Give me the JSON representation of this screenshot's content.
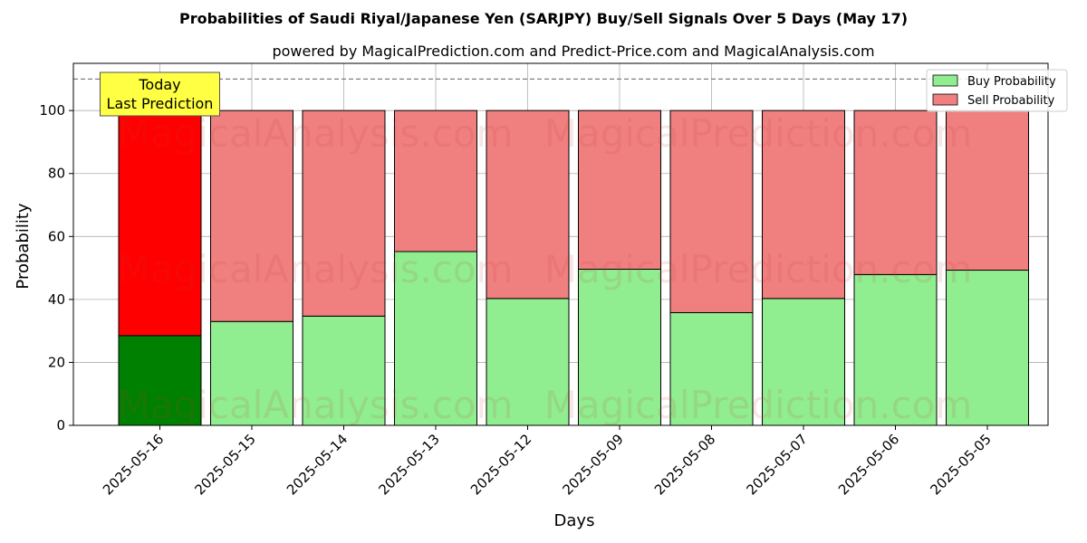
{
  "chart_data": {
    "type": "bar",
    "stacked": true,
    "title": "Probabilities of Saudi Riyal/Japanese Yen (SARJPY) Buy/Sell Signals Over 5 Days (May 17)",
    "subtitle": "powered by MagicalPrediction.com and Predict-Price.com and MagicalAnalysis.com",
    "xlabel": "Days",
    "ylabel": "Probability",
    "ylim": [
      0,
      115
    ],
    "yticks": [
      0,
      20,
      40,
      60,
      80,
      100
    ],
    "grid": true,
    "legend_position": "top-right",
    "categories": [
      "2025-05-16",
      "2025-05-15",
      "2025-05-14",
      "2025-05-13",
      "2025-05-12",
      "2025-05-09",
      "2025-05-08",
      "2025-05-07",
      "2025-05-06",
      "2025-05-05"
    ],
    "series": [
      {
        "name": "Buy Probability",
        "color": "#90ee90",
        "highlight_color": "#008000",
        "values": [
          28.5,
          33,
          34.7,
          55.2,
          40.3,
          49.6,
          35.8,
          40.3,
          47.9,
          49.3
        ]
      },
      {
        "name": "Sell Probability",
        "color": "#f08080",
        "highlight_color": "#ff0000",
        "values": [
          71.5,
          67,
          65.3,
          44.8,
          59.7,
          50.4,
          64.2,
          59.7,
          52.1,
          50.7
        ]
      }
    ],
    "reference_line": {
      "y": 110,
      "style": "dashed",
      "color": "#808080"
    },
    "annotation": {
      "lines": [
        "Today",
        "Last Prediction"
      ],
      "category": "2025-05-16",
      "background": "#ffff44"
    },
    "watermarks": [
      "MagicalAnalysis.com",
      "MagicalPrediction.com"
    ]
  }
}
